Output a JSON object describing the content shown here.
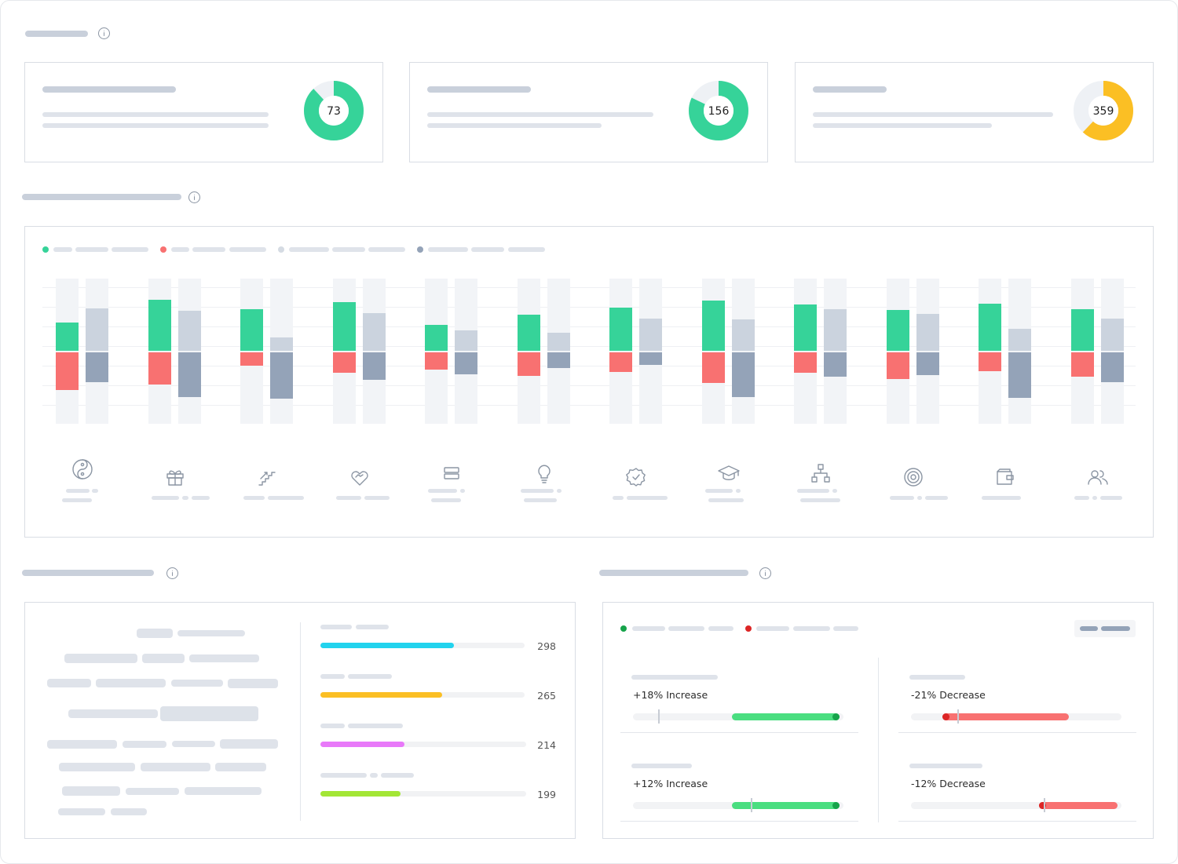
{
  "colors": {
    "green": "#36d399",
    "red": "#f87171",
    "light_gray": "#cbd3de",
    "dark_gray": "#94a3b8",
    "yellow": "#fbbf24",
    "cyan": "#22d3ee",
    "orange": "#fbbf24",
    "magenta": "#e879f9",
    "lime": "#a3e635",
    "increase": "#4ade80",
    "decrease": "#f87171"
  },
  "kpis": [
    {
      "value": "73",
      "fraction": 0.88,
      "color": "#36d399"
    },
    {
      "value": "156",
      "fraction": 0.82,
      "color": "#36d399"
    },
    {
      "value": "359",
      "fraction": 0.62,
      "color": "#fbbf24"
    }
  ],
  "chart_data": {
    "type": "bar",
    "categories": [
      "yin-yang",
      "gift",
      "stairs",
      "heart-handshake",
      "stack",
      "lightbulb",
      "badge-check",
      "graduation-cap",
      "sitemap",
      "target",
      "wallet",
      "users"
    ],
    "series": [
      {
        "values": [
          36,
          65,
          53,
          62,
          33,
          46,
          55,
          64,
          59,
          52,
          60,
          53
        ]
      },
      {
        "values": [
          -48,
          -41,
          -17,
          -26,
          -22,
          -30,
          -25,
          -39,
          -26,
          -34,
          -24,
          -31
        ]
      },
      {
        "values": [
          54,
          51,
          17,
          48,
          26,
          23,
          41,
          40,
          53,
          47,
          28,
          41
        ]
      },
      {
        "values": [
          -38,
          -57,
          -59,
          -35,
          -28,
          -20,
          -16,
          -57,
          -31,
          -29,
          -58,
          -38
        ]
      }
    ],
    "ylim": [
      -90,
      90
    ]
  },
  "icons": [
    "yin-yang-icon",
    "gift-icon",
    "stairs-icon",
    "heart-handshake-icon",
    "stack-icon",
    "lightbulb-icon",
    "badge-check-icon",
    "graduation-cap-icon",
    "sitemap-icon",
    "target-icon",
    "wallet-icon",
    "users-icon"
  ],
  "progress": [
    {
      "value": "298",
      "fraction": 0.65,
      "color": "#22d3ee"
    },
    {
      "value": "265",
      "fraction": 0.59,
      "color": "#fbbf24"
    },
    {
      "value": "214",
      "fraction": 0.41,
      "color": "#e879f9"
    },
    {
      "value": "199",
      "fraction": 0.39,
      "color": "#a3e635"
    }
  ],
  "changes": [
    {
      "label": "+18% Increase",
      "direction": "increase",
      "start": 0.47,
      "end": 0.98,
      "marker": 0.12
    },
    {
      "label": "-21% Decrease",
      "direction": "decrease",
      "start": 0.15,
      "end": 0.75,
      "marker": 0.22
    },
    {
      "label": "+12% Increase",
      "direction": "increase",
      "start": 0.47,
      "end": 0.98,
      "marker": 0.56
    },
    {
      "label": "-12% Decrease",
      "direction": "decrease",
      "start": 0.61,
      "end": 0.98,
      "marker": 0.63
    }
  ]
}
